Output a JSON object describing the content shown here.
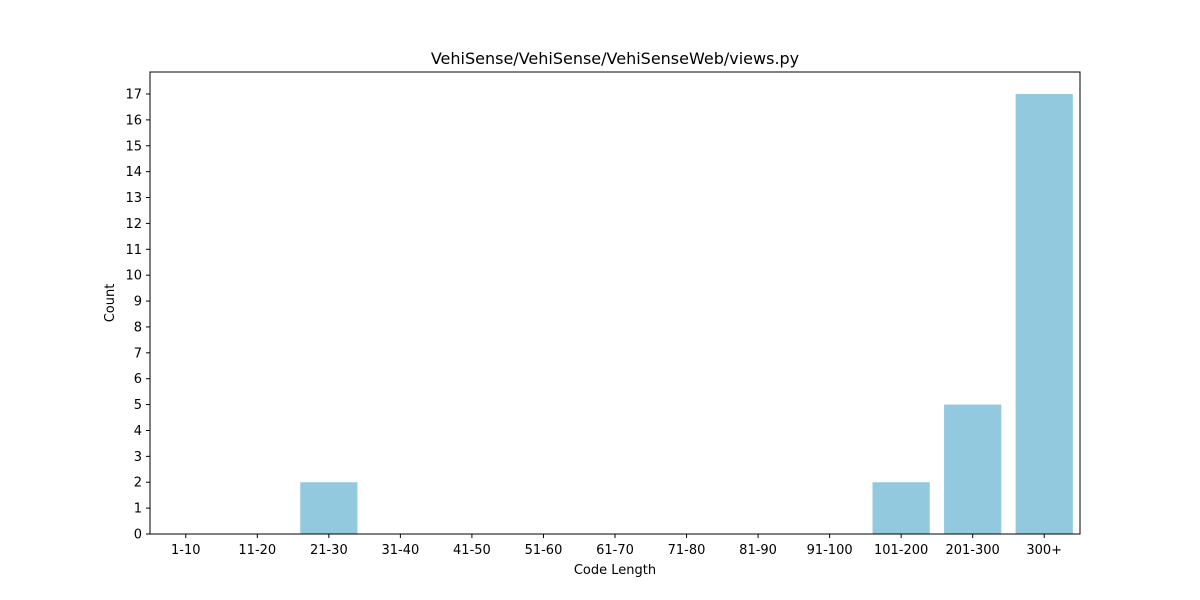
{
  "chart_data": {
    "type": "bar",
    "title": "VehiSense/VehiSense/VehiSenseWeb/views.py",
    "xlabel": "Code Length",
    "ylabel": "Count",
    "categories": [
      "1-10",
      "11-20",
      "21-30",
      "31-40",
      "41-50",
      "51-60",
      "61-70",
      "71-80",
      "81-90",
      "91-100",
      "101-200",
      "201-300",
      "300+"
    ],
    "values": [
      0,
      0,
      2,
      0,
      0,
      0,
      0,
      0,
      0,
      0,
      2,
      5,
      17
    ],
    "ylim": [
      0,
      17.85
    ],
    "yticks": [
      "0",
      "1",
      "2",
      "3",
      "4",
      "5",
      "6",
      "7",
      "8",
      "9",
      "10",
      "11",
      "12",
      "13",
      "14",
      "15",
      "16",
      "17"
    ],
    "grid": false,
    "legend": "none",
    "bar_color": "#92c9de"
  }
}
